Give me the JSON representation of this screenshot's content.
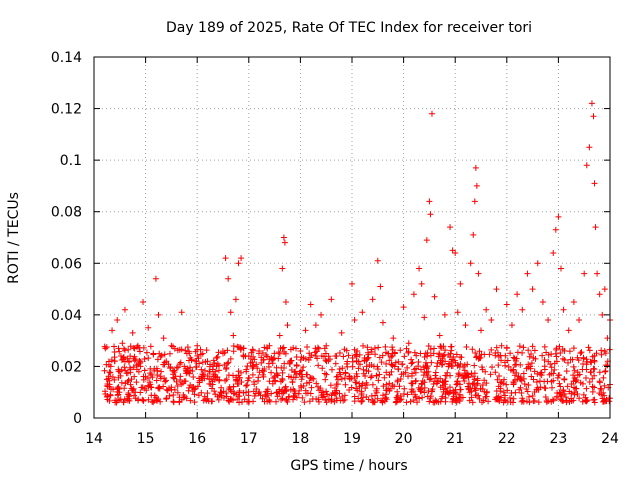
{
  "chart_data": {
    "type": "scatter",
    "title": "Day 189 of 2025, Rate Of TEC Index for receiver tori",
    "xlabel": "GPS time / hours",
    "ylabel": "ROTI / TECUs",
    "xlim": [
      14,
      24
    ],
    "ylim": [
      0,
      0.14
    ],
    "x_ticks": [
      "14",
      "15",
      "16",
      "17",
      "18",
      "19",
      "20",
      "21",
      "22",
      "23",
      "24"
    ],
    "y_ticks": [
      "0",
      "0.02",
      "0.04",
      "0.06",
      "0.08",
      "0.1",
      "0.12",
      "0.14"
    ],
    "grid": true,
    "series": [
      {
        "name": "ROTI",
        "color": "#ff0000",
        "marker": "plus",
        "points": [
          [
            14.22,
            0.027
          ],
          [
            14.25,
            0.015
          ],
          [
            14.3,
            0.012
          ],
          [
            14.35,
            0.034
          ],
          [
            14.4,
            0.022
          ],
          [
            14.45,
            0.038
          ],
          [
            14.5,
            0.018
          ],
          [
            14.55,
            0.029
          ],
          [
            14.6,
            0.042
          ],
          [
            14.65,
            0.014
          ],
          [
            14.7,
            0.024
          ],
          [
            14.75,
            0.033
          ],
          [
            14.8,
            0.01
          ],
          [
            14.85,
            0.028
          ],
          [
            14.9,
            0.02
          ],
          [
            14.95,
            0.045
          ],
          [
            15.0,
            0.016
          ],
          [
            15.05,
            0.035
          ],
          [
            15.1,
            0.012
          ],
          [
            15.15,
            0.025
          ],
          [
            15.2,
            0.054
          ],
          [
            15.25,
            0.04
          ],
          [
            15.3,
            0.018
          ],
          [
            15.35,
            0.031
          ],
          [
            15.4,
            0.022
          ],
          [
            15.5,
            0.028
          ],
          [
            15.6,
            0.014
          ],
          [
            15.7,
            0.041
          ],
          [
            15.75,
            0.02
          ],
          [
            15.8,
            0.025
          ],
          [
            15.9,
            0.012
          ],
          [
            16.0,
            0.028
          ],
          [
            16.1,
            0.017
          ],
          [
            16.2,
            0.022
          ],
          [
            16.3,
            0.013
          ],
          [
            16.4,
            0.021
          ],
          [
            16.5,
            0.025
          ],
          [
            16.55,
            0.062
          ],
          [
            16.6,
            0.054
          ],
          [
            16.65,
            0.041
          ],
          [
            16.7,
            0.032
          ],
          [
            16.75,
            0.046
          ],
          [
            16.8,
            0.06
          ],
          [
            16.85,
            0.062
          ],
          [
            16.9,
            0.027
          ],
          [
            16.95,
            0.018
          ],
          [
            17.0,
            0.024
          ],
          [
            17.1,
            0.014
          ],
          [
            17.2,
            0.026
          ],
          [
            17.3,
            0.019
          ],
          [
            17.4,
            0.028
          ],
          [
            17.5,
            0.016
          ],
          [
            17.6,
            0.032
          ],
          [
            17.65,
            0.058
          ],
          [
            17.68,
            0.07
          ],
          [
            17.7,
            0.068
          ],
          [
            17.72,
            0.045
          ],
          [
            17.75,
            0.036
          ],
          [
            17.8,
            0.022
          ],
          [
            17.9,
            0.018
          ],
          [
            18.0,
            0.026
          ],
          [
            18.1,
            0.034
          ],
          [
            18.2,
            0.044
          ],
          [
            18.3,
            0.036
          ],
          [
            18.4,
            0.04
          ],
          [
            18.5,
            0.028
          ],
          [
            18.6,
            0.046
          ],
          [
            18.7,
            0.024
          ],
          [
            18.8,
            0.033
          ],
          [
            18.9,
            0.021
          ],
          [
            19.0,
            0.052
          ],
          [
            19.05,
            0.038
          ],
          [
            19.1,
            0.026
          ],
          [
            19.2,
            0.041
          ],
          [
            19.3,
            0.023
          ],
          [
            19.4,
            0.046
          ],
          [
            19.5,
            0.061
          ],
          [
            19.55,
            0.051
          ],
          [
            19.6,
            0.037
          ],
          [
            19.7,
            0.025
          ],
          [
            19.8,
            0.031
          ],
          [
            19.9,
            0.019
          ],
          [
            20.0,
            0.043
          ],
          [
            20.1,
            0.029
          ],
          [
            20.2,
            0.048
          ],
          [
            20.3,
            0.058
          ],
          [
            20.35,
            0.052
          ],
          [
            20.4,
            0.039
          ],
          [
            20.45,
            0.069
          ],
          [
            20.5,
            0.084
          ],
          [
            20.52,
            0.079
          ],
          [
            20.55,
            0.118
          ],
          [
            20.6,
            0.047
          ],
          [
            20.7,
            0.032
          ],
          [
            20.8,
            0.04
          ],
          [
            20.9,
            0.074
          ],
          [
            20.95,
            0.065
          ],
          [
            21.0,
            0.064
          ],
          [
            21.05,
            0.041
          ],
          [
            21.1,
            0.052
          ],
          [
            21.2,
            0.036
          ],
          [
            21.3,
            0.06
          ],
          [
            21.35,
            0.071
          ],
          [
            21.38,
            0.084
          ],
          [
            21.4,
            0.097
          ],
          [
            21.42,
            0.09
          ],
          [
            21.45,
            0.056
          ],
          [
            21.5,
            0.034
          ],
          [
            21.6,
            0.042
          ],
          [
            21.7,
            0.038
          ],
          [
            21.8,
            0.05
          ],
          [
            21.9,
            0.028
          ],
          [
            22.0,
            0.044
          ],
          [
            22.1,
            0.036
          ],
          [
            22.2,
            0.048
          ],
          [
            22.3,
            0.042
          ],
          [
            22.4,
            0.056
          ],
          [
            22.5,
            0.05
          ],
          [
            22.6,
            0.06
          ],
          [
            22.7,
            0.045
          ],
          [
            22.8,
            0.038
          ],
          [
            22.9,
            0.064
          ],
          [
            22.95,
            0.073
          ],
          [
            23.0,
            0.078
          ],
          [
            23.05,
            0.058
          ],
          [
            23.1,
            0.042
          ],
          [
            23.2,
            0.034
          ],
          [
            23.3,
            0.045
          ],
          [
            23.4,
            0.038
          ],
          [
            23.5,
            0.056
          ],
          [
            23.55,
            0.098
          ],
          [
            23.6,
            0.105
          ],
          [
            23.65,
            0.122
          ],
          [
            23.68,
            0.117
          ],
          [
            23.7,
            0.091
          ],
          [
            23.72,
            0.074
          ],
          [
            23.75,
            0.056
          ],
          [
            23.8,
            0.048
          ],
          [
            23.85,
            0.04
          ],
          [
            23.9,
            0.05
          ],
          [
            23.95,
            0.031
          ],
          [
            24.0,
            0.038
          ]
        ]
      }
    ],
    "background_band": {
      "x_start": 14.2,
      "x_end": 24.0,
      "y_min": 0.006,
      "y_max": 0.028
    }
  }
}
